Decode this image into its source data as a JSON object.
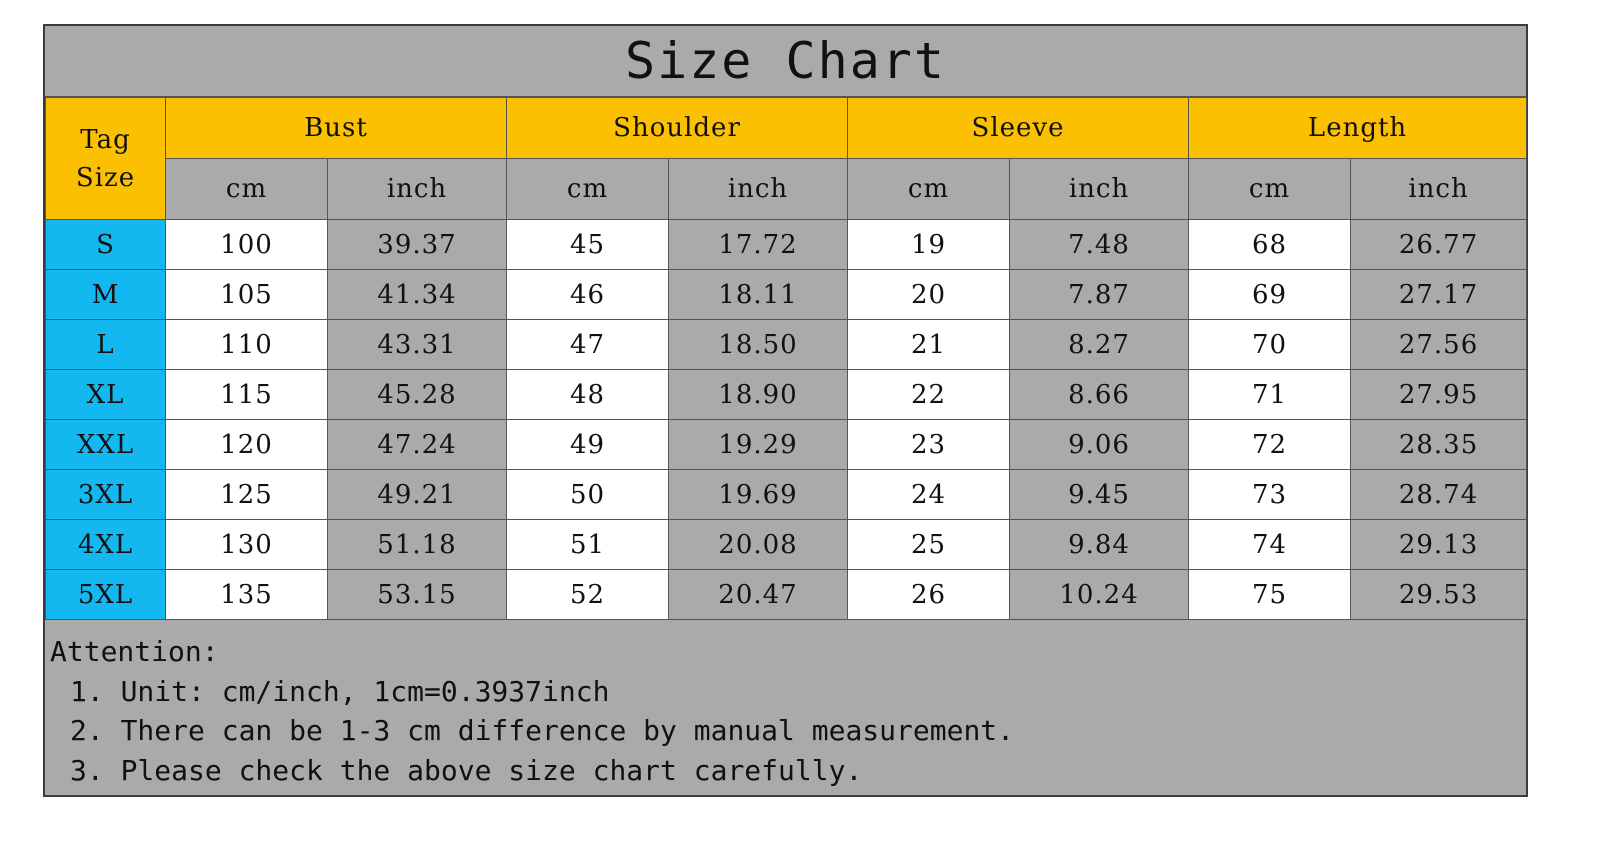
{
  "title": "Size Chart",
  "table": {
    "tag_size_label": "Tag\nSize",
    "groups": [
      "Bust",
      "Shoulder",
      "Sleeve",
      "Length"
    ],
    "units": [
      "cm",
      "inch",
      "cm",
      "inch",
      "cm",
      "inch",
      "cm",
      "inch"
    ],
    "rows": [
      {
        "size": "S",
        "values": [
          "100",
          "39.37",
          "45",
          "17.72",
          "19",
          "7.48",
          "68",
          "26.77"
        ]
      },
      {
        "size": "M",
        "values": [
          "105",
          "41.34",
          "46",
          "18.11",
          "20",
          "7.87",
          "69",
          "27.17"
        ]
      },
      {
        "size": "L",
        "values": [
          "110",
          "43.31",
          "47",
          "18.50",
          "21",
          "8.27",
          "70",
          "27.56"
        ]
      },
      {
        "size": "XL",
        "values": [
          "115",
          "45.28",
          "48",
          "18.90",
          "22",
          "8.66",
          "71",
          "27.95"
        ]
      },
      {
        "size": "XXL",
        "values": [
          "120",
          "47.24",
          "49",
          "19.29",
          "23",
          "9.06",
          "72",
          "28.35"
        ]
      },
      {
        "size": "3XL",
        "values": [
          "125",
          "49.21",
          "50",
          "19.69",
          "24",
          "9.45",
          "73",
          "28.74"
        ]
      },
      {
        "size": "4XL",
        "values": [
          "130",
          "51.18",
          "51",
          "20.08",
          "25",
          "9.84",
          "74",
          "29.13"
        ]
      },
      {
        "size": "5XL",
        "values": [
          "135",
          "53.15",
          "52",
          "20.47",
          "26",
          "10.24",
          "75",
          "29.53"
        ]
      }
    ]
  },
  "notes": {
    "heading": "Attention:",
    "items": [
      "1. Unit: cm/inch, 1cm=0.3937inch",
      "2. There can be 1-3 cm difference by manual measurement.",
      "3. Please check the above size chart carefully."
    ]
  },
  "colors": {
    "header_yellow": "#fbc002",
    "size_blue": "#14b8f0",
    "gray": "#aaaaaa",
    "white": "#ffffff"
  }
}
